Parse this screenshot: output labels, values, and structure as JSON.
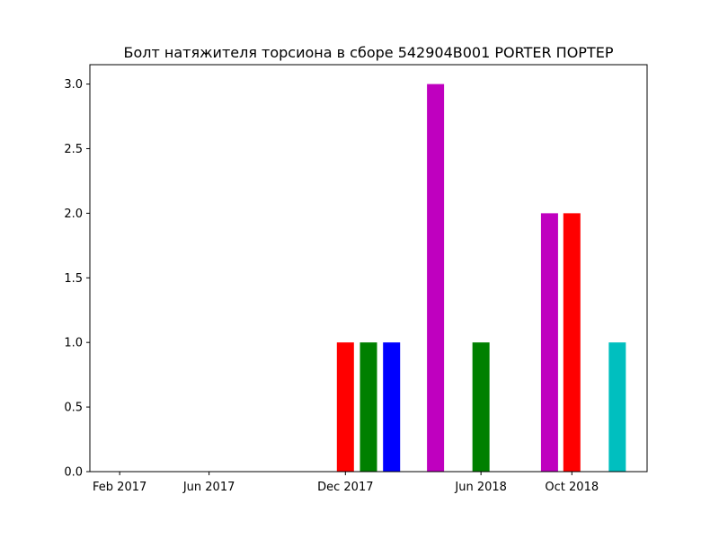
{
  "chart_data": {
    "type": "bar",
    "title": "Болт натяжителя торсиона в сборе 542904B001 PORTER ПОРТЕР",
    "xlabel": "",
    "ylabel": "",
    "x_axis_type": "date",
    "xlim": [
      "2016-12-23",
      "2019-01-10"
    ],
    "ylim": [
      0,
      3.15
    ],
    "yticks": [
      0.0,
      0.5,
      1.0,
      1.5,
      2.0,
      2.5,
      3.0
    ],
    "ytick_labels": [
      "0.0",
      "0.5",
      "1.0",
      "1.5",
      "2.0",
      "2.5",
      "3.0"
    ],
    "xticks": [
      {
        "date": "2017-02-01",
        "label": "Feb 2017"
      },
      {
        "date": "2017-06-01",
        "label": "Jun 2017"
      },
      {
        "date": "2017-12-01",
        "label": "Dec 2017"
      },
      {
        "date": "2018-06-01",
        "label": "Jun 2018"
      },
      {
        "date": "2018-10-01",
        "label": "Oct 2018"
      }
    ],
    "grid": false,
    "bars": [
      {
        "date": "2017-12-01",
        "value": 1,
        "color": "#ff0000"
      },
      {
        "date": "2018-01-01",
        "value": 1,
        "color": "#008000"
      },
      {
        "date": "2018-02-01",
        "value": 1,
        "color": "#0000ff"
      },
      {
        "date": "2018-04-01",
        "value": 3,
        "color": "#bf00bf"
      },
      {
        "date": "2018-06-01",
        "value": 1,
        "color": "#008000"
      },
      {
        "date": "2018-09-01",
        "value": 2,
        "color": "#bf00bf"
      },
      {
        "date": "2018-10-01",
        "value": 2,
        "color": "#ff0000"
      },
      {
        "date": "2018-12-01",
        "value": 1,
        "color": "#00bfbf"
      }
    ]
  }
}
